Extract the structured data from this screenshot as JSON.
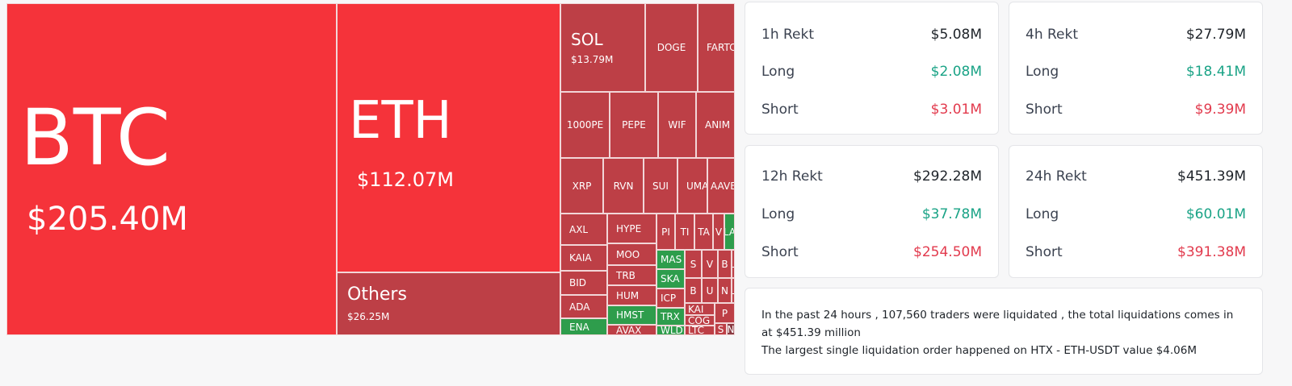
{
  "treemap": {
    "btc": {
      "label": "BTC",
      "value": "$205.40M"
    },
    "eth": {
      "label": "ETH",
      "value": "$112.07M"
    },
    "others": {
      "label": "Others",
      "value": "$26.25M"
    },
    "sol": {
      "label": "SOL",
      "value": "$13.79M"
    },
    "cells": [
      "DOGE",
      "FARTC",
      "1000PE",
      "PEPE",
      "WIF",
      "ANIM",
      "XRP",
      "RVN",
      "SUI",
      "UMA",
      "AAVE",
      "AXL",
      "KAIA",
      "BID",
      "ADA",
      "ENA",
      "HYPE",
      "MOO",
      "TRB",
      "HUM",
      "HMST",
      "AVAX",
      "PI",
      "TI",
      "TA",
      "V",
      "LA",
      "MAS",
      "SKA",
      "ICP",
      "TRX",
      "WLD",
      "S",
      "V",
      "B",
      "L",
      "B",
      "U",
      "N",
      "L",
      "KAI",
      "COG",
      "LTC",
      "P",
      "S",
      "N"
    ]
  },
  "cards": [
    {
      "title": "1h Rekt",
      "total": "$5.08M",
      "long_label": "Long",
      "long": "$2.08M",
      "short_label": "Short",
      "short": "$3.01M"
    },
    {
      "title": "4h Rekt",
      "total": "$27.79M",
      "long_label": "Long",
      "long": "$18.41M",
      "short_label": "Short",
      "short": "$9.39M"
    },
    {
      "title": "12h Rekt",
      "total": "$292.28M",
      "long_label": "Long",
      "long": "$37.78M",
      "short_label": "Short",
      "short": "$254.50M"
    },
    {
      "title": "24h Rekt",
      "total": "$451.39M",
      "long_label": "Long",
      "long": "$60.01M",
      "short_label": "Short",
      "short": "$391.38M"
    }
  ],
  "summary": {
    "line1": "In the past 24 hours , 107,560 traders were liquidated , the total liquidations comes in at $451.39 million",
    "line2": "The largest single liquidation order happened on HTX - ETH-USDT value $4.06M"
  },
  "colors": {
    "major": "#f5333a",
    "short_liq": "#bd3f46",
    "long_liq": "#2e9d4c",
    "long_text": "#1aa386",
    "short_text": "#e23a4d"
  }
}
